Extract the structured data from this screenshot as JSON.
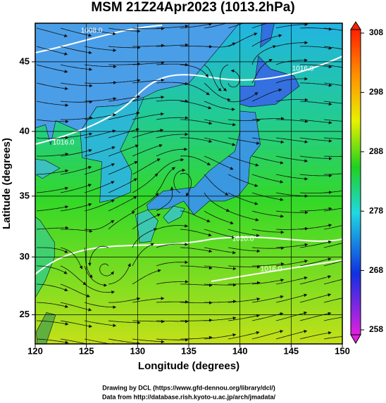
{
  "header": {
    "title": "MSM 21Z24Apr2023 (1013.2hPa)"
  },
  "map": {
    "x_label": "Longitude (degrees)",
    "y_label": "Latitude  (degrees)",
    "lon_range": [
      120,
      150
    ],
    "lat_range": [
      22.4,
      47.6
    ],
    "lon_ticks": [
      120,
      125,
      130,
      135,
      140,
      145,
      150
    ],
    "lat_ticks": [
      25,
      30,
      35,
      40,
      45
    ],
    "contour_labels": [
      "1008.0",
      "1016.0",
      "1016.0",
      "1020.0",
      "1016.0"
    ]
  },
  "colorbar": {
    "range": [
      258,
      308
    ],
    "ticks": [
      258,
      268,
      278,
      288,
      298,
      308
    ]
  },
  "footer": {
    "lines": [
      "Drawing by DCL (https://www.gfd-dennou.org/library/dcl/)",
      "Data from http://database.rish.kyoto-u.ac.jp/arch/jmadata/"
    ]
  }
}
